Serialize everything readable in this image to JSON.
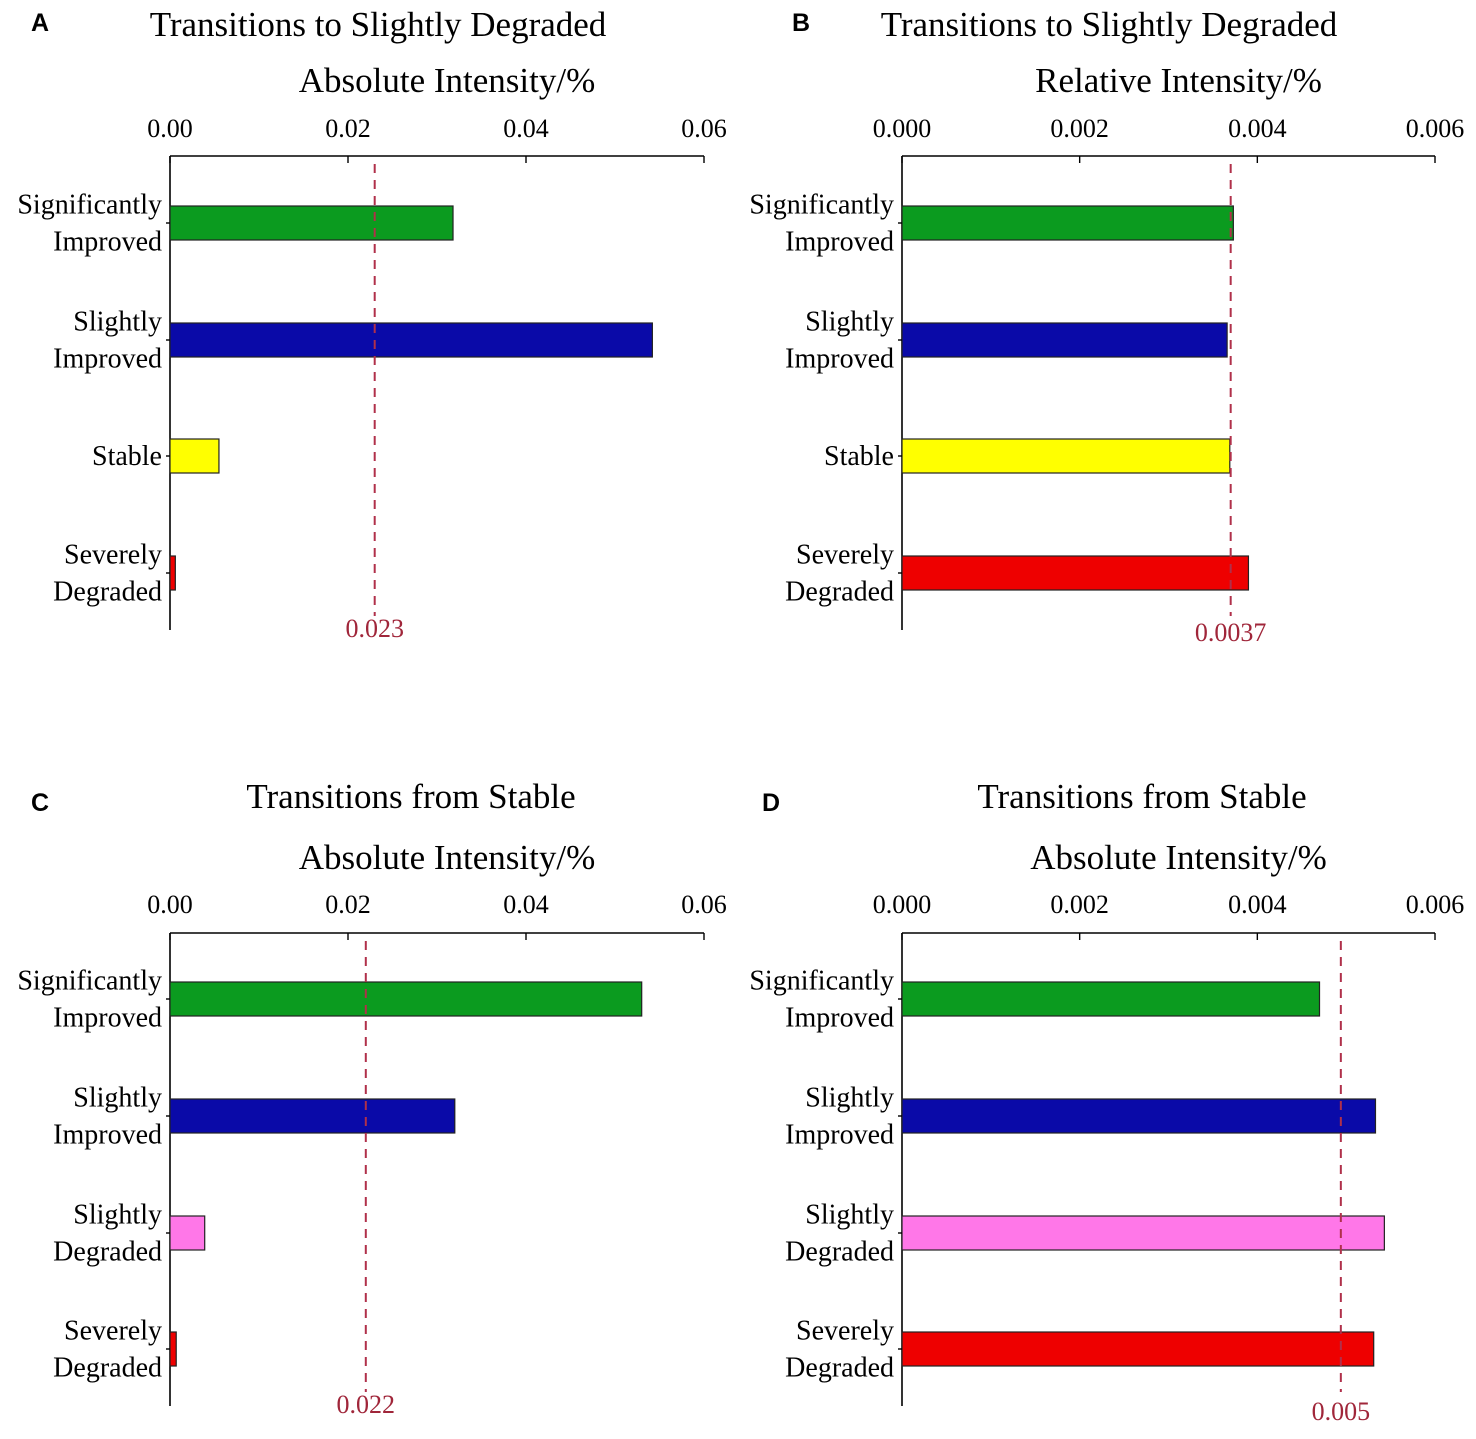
{
  "colors": {
    "significantly_improved": "#0b9b1f",
    "slightly_improved": "#0a0aa8",
    "stable": "#ffff00",
    "slightly_degraded": "#ff77e8",
    "severely_degraded": "#ee0000",
    "reference_line": "#b0304a"
  },
  "chart_data": [
    {
      "panel": "A",
      "type": "bar",
      "orientation": "horizontal",
      "title": "Transitions to Slightly Degraded",
      "xlabel": "Absolute Intensity/%",
      "xlim": [
        0,
        0.06
      ],
      "ticks": [
        0,
        0.02,
        0.04,
        0.06
      ],
      "tick_labels": [
        "0.00",
        "0.02",
        "0.04",
        "0.06"
      ],
      "categories": [
        [
          "Significantly",
          "Improved"
        ],
        [
          "Slightly",
          "Improved"
        ],
        [
          "Stable"
        ],
        [
          "Severely",
          "Degraded"
        ]
      ],
      "category_keys": [
        "significantly_improved",
        "slightly_improved",
        "stable",
        "severely_degraded"
      ],
      "values": [
        0.0318,
        0.0542,
        0.0055,
        0.0006
      ],
      "reference": 0.023,
      "reference_label": "0.023"
    },
    {
      "panel": "B",
      "type": "bar",
      "orientation": "horizontal",
      "title": "Transitions to Slightly Degraded",
      "xlabel": "Relative Intensity/%",
      "xlim": [
        0,
        0.006
      ],
      "ticks": [
        0,
        0.002,
        0.004,
        0.006
      ],
      "tick_labels": [
        "0.000",
        "0.002",
        "0.004",
        "0.006"
      ],
      "categories": [
        [
          "Significantly",
          "Improved"
        ],
        [
          "Slightly",
          "Improved"
        ],
        [
          "Stable"
        ],
        [
          "Severely",
          "Degraded"
        ]
      ],
      "category_keys": [
        "significantly_improved",
        "slightly_improved",
        "stable",
        "severely_degraded"
      ],
      "values": [
        0.00373,
        0.00366,
        0.00369,
        0.0039
      ],
      "reference": 0.0037,
      "reference_label": "0.0037"
    },
    {
      "panel": "C",
      "type": "bar",
      "orientation": "horizontal",
      "title": "Transitions from Stable",
      "xlabel": "Absolute Intensity/%",
      "xlim": [
        0,
        0.06
      ],
      "ticks": [
        0,
        0.02,
        0.04,
        0.06
      ],
      "tick_labels": [
        "0.00",
        "0.02",
        "0.04",
        "0.06"
      ],
      "categories": [
        [
          "Significantly",
          "Improved"
        ],
        [
          "Slightly",
          "Improved"
        ],
        [
          "Slightly",
          "Degraded"
        ],
        [
          "Severely",
          "Degraded"
        ]
      ],
      "category_keys": [
        "significantly_improved",
        "slightly_improved",
        "slightly_degraded",
        "severely_degraded"
      ],
      "values": [
        0.053,
        0.032,
        0.0039,
        0.0007
      ],
      "reference": 0.022,
      "reference_label": "0.022"
    },
    {
      "panel": "D",
      "type": "bar",
      "orientation": "horizontal",
      "title": "Transitions from Stable",
      "xlabel": "Absolute Intensity/%",
      "xlim": [
        0,
        0.006
      ],
      "ticks": [
        0,
        0.002,
        0.004,
        0.006
      ],
      "tick_labels": [
        "0.000",
        "0.002",
        "0.004",
        "0.006"
      ],
      "categories": [
        [
          "Significantly",
          "Improved"
        ],
        [
          "Slightly",
          "Improved"
        ],
        [
          "Slightly",
          "Degraded"
        ],
        [
          "Severely",
          "Degraded"
        ]
      ],
      "category_keys": [
        "significantly_improved",
        "slightly_improved",
        "slightly_degraded",
        "severely_degraded"
      ],
      "values": [
        0.0047,
        0.00533,
        0.00543,
        0.00531
      ],
      "reference": 0.00494,
      "reference_label": "0.005"
    }
  ]
}
